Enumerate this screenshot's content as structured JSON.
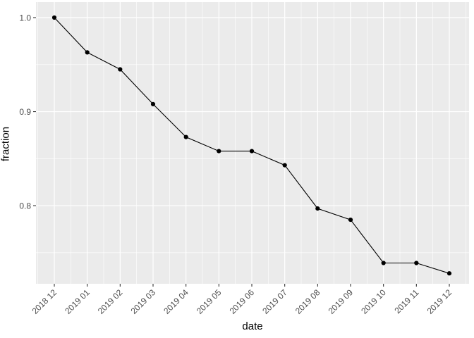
{
  "chart_data": {
    "type": "line",
    "title": "",
    "xlabel": "date",
    "ylabel": "fraction",
    "categories": [
      "2018 12",
      "2019 01",
      "2019 02",
      "2019 03",
      "2019 04",
      "2019 05",
      "2019 06",
      "2019 07",
      "2019 08",
      "2019 09",
      "2019 10",
      "2019 11",
      "2019 12"
    ],
    "values": [
      1.0,
      0.963,
      0.945,
      0.908,
      0.873,
      0.858,
      0.858,
      0.843,
      0.797,
      0.785,
      0.739,
      0.739,
      0.728
    ],
    "ylim": [
      0.7169,
      1.0165
    ],
    "yticks": {
      "values": [
        0.8,
        0.9,
        1.0
      ],
      "labels": [
        "0.8",
        "0.9",
        "1.0"
      ]
    },
    "yminor": [
      0.75,
      0.85,
      0.95
    ],
    "grid": "on",
    "legend": "none",
    "colors": {
      "panel_bg": "#EBEBEB",
      "grid": "#FFFFFF",
      "line": "#000000",
      "point": "#000000",
      "tick_label": "#4D4D4D",
      "tick_mark": "#333333",
      "axis_title": "#000000"
    }
  }
}
